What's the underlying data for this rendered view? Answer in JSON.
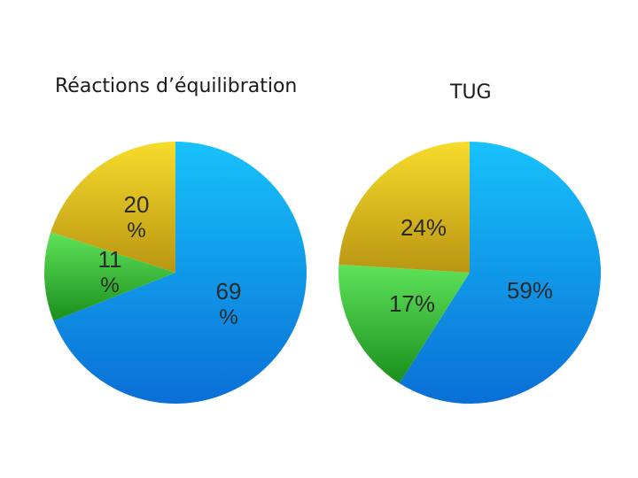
{
  "chart_data": [
    {
      "type": "pie",
      "title": "Réactions d’équilibration",
      "slices": [
        {
          "label_line1": "69",
          "label_line2": "%",
          "value": 69,
          "color": "#1f93e6"
        },
        {
          "label_line1": "11",
          "label_line2": "%",
          "value": 11,
          "color": "#4ccc48"
        },
        {
          "label_line1": "20",
          "label_line2": "%",
          "value": 20,
          "color": "#e3c128"
        }
      ]
    },
    {
      "type": "pie",
      "title": "TUG",
      "slices": [
        {
          "label_line1": "59%",
          "label_line2": "",
          "value": 59,
          "color": "#1f93e6"
        },
        {
          "label_line1": "17%",
          "label_line2": "",
          "value": 17,
          "color": "#4ccc48"
        },
        {
          "label_line1": "24%",
          "label_line2": "",
          "value": 24,
          "color": "#e3c128"
        }
      ]
    }
  ]
}
